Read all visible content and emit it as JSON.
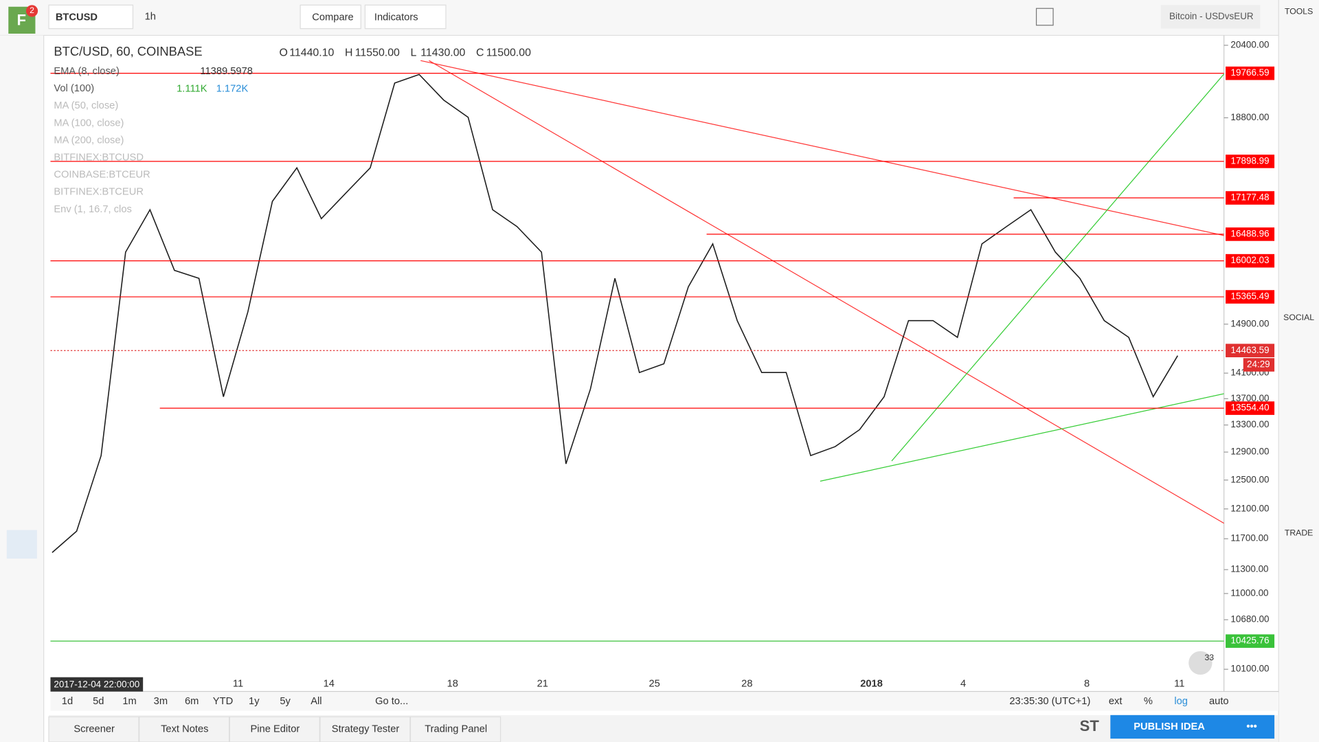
{
  "toolbar": {
    "symbol": "BTCUSD",
    "interval": "1h",
    "compare": "Compare",
    "indicators": "Indicators",
    "layout": "Bitcoin - USDvsEUR",
    "badge": "2"
  },
  "legend": {
    "title": "BTC/USD, 60, COINBASE",
    "ohlc": [
      [
        "O",
        "11440.10"
      ],
      [
        "H",
        "11550.00"
      ],
      [
        "L",
        "11430.00"
      ],
      [
        "C",
        "11500.00"
      ]
    ]
  },
  "indicators": [
    "EMA (8, close)",
    "Vol (100)",
    "MA (50, close)",
    "MA (100, close)",
    "MA (200, close)",
    "BITFINEX:BTCUSD",
    "COINBASE:BTCEUR",
    "BITFINEX:BTCEUR",
    "Env (1, 16.7, clos"
  ],
  "indicator_values": {
    "ema": "11389.5978",
    "vol": [
      "1.111K",
      "1.172K"
    ]
  },
  "sidebar": {
    "tools": "TOOLS",
    "social": "SOCIAL",
    "trade": "TRADE"
  },
  "chart_data": {
    "type": "line",
    "log_scale": true,
    "start_label": "2017-12-04 22:00:00",
    "x_labels": [
      "11",
      "14",
      "18",
      "21",
      "25",
      "28",
      "2018",
      "4",
      "8",
      "11"
    ],
    "ylim": [
      9850,
      20630
    ],
    "yticks": [
      {
        "value": 20400,
        "label": "20400.00"
      },
      {
        "value": 18800,
        "label": "18800.00"
      },
      {
        "value": 14900,
        "label": "14900.00"
      },
      {
        "value": 14100,
        "label": "14100.00"
      },
      {
        "value": 13700,
        "label": "13700.00"
      },
      {
        "value": 13300,
        "label": "13300.00"
      },
      {
        "value": 12900,
        "label": "12900.00"
      },
      {
        "value": 12500,
        "label": "12500.00"
      },
      {
        "value": 12100,
        "label": "12100.00"
      },
      {
        "value": 11700,
        "label": "11700.00"
      },
      {
        "value": 11300,
        "label": "11300.00"
      },
      {
        "value": 11000,
        "label": "11000.00"
      },
      {
        "value": 10680,
        "label": "10680.00"
      },
      {
        "value": 10100,
        "label": "10100.00"
      }
    ],
    "series": [
      {
        "color": "#1e1e1e",
        "values": [
          11520,
          11800,
          12850,
          16160,
          16950,
          15830,
          15690,
          13730,
          15110,
          17110,
          17770,
          16780,
          17270,
          17770,
          19550,
          19740,
          19180,
          18810,
          16950,
          16630,
          16160,
          12730,
          13850,
          15690,
          14110,
          14250,
          15540,
          16310,
          14960,
          14110,
          14110,
          12850,
          12980,
          13230,
          13730,
          14960,
          14960,
          14680,
          16310,
          16630,
          16950,
          16160,
          15690,
          14960,
          14680,
          13730,
          14380
        ]
      }
    ],
    "levels": [
      {
        "value": 19766.59,
        "color": "#f00"
      },
      {
        "value": 17898.99,
        "color": "#f00"
      },
      {
        "value": 17177.48,
        "color": "#f00"
      },
      {
        "value": 16488.96,
        "color": "#f00"
      },
      {
        "value": 16002.03,
        "color": "#f00"
      },
      {
        "value": 15365.49,
        "color": "#f00"
      },
      {
        "value": 14463.59,
        "color": "#e03030"
      },
      {
        "value": 13554.4,
        "label": "13554.40",
        "color": "#f00"
      },
      {
        "value": 10425.76,
        "color": "#3ac23a"
      }
    ],
    "countdown": "24:29"
  },
  "bottom": {
    "ranges": [
      "1d",
      "5d",
      "1m",
      "3m",
      "6m",
      "YTD",
      "1y",
      "5y",
      "All"
    ],
    "goto": "Go to...",
    "clock": "23:35:30 (UTC+1)",
    "options": [
      "ext",
      "%",
      "log",
      "auto"
    ]
  },
  "tabs": [
    "Screener",
    "Text Notes",
    "Pine Editor",
    "Strategy Tester",
    "Trading Panel"
  ],
  "publish": "PUBLISH IDEA",
  "st": "ST",
  "flag_badge": "33"
}
